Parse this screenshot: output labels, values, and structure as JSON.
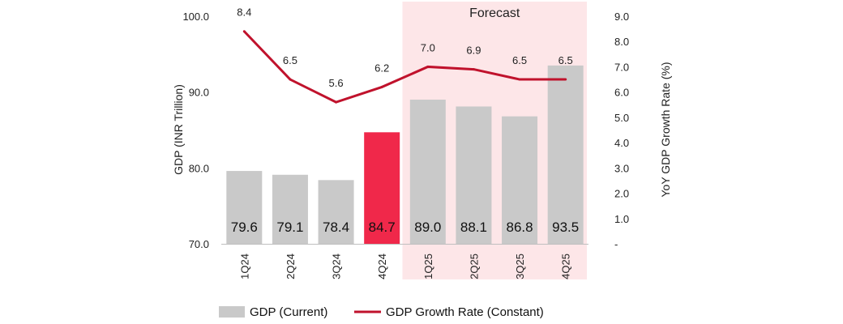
{
  "chart_data": {
    "type": "bar",
    "categories": [
      "1Q24",
      "2Q24",
      "3Q24",
      "4Q24",
      "1Q25",
      "2Q25",
      "3Q25",
      "4Q25"
    ],
    "series": [
      {
        "name": "GDP (Current)",
        "kind": "bar",
        "axis": "left",
        "values": [
          79.6,
          79.1,
          78.4,
          84.7,
          89.0,
          88.1,
          86.8,
          93.5
        ],
        "labels": [
          "79.6",
          "79.1",
          "78.4",
          "84.7",
          "89.0",
          "88.1",
          "86.8",
          "93.5"
        ],
        "color": "#c9c9c9",
        "highlight_index": 3,
        "highlight_color": "#f0284a"
      },
      {
        "name": "GDP Growth Rate (Constant)",
        "kind": "line",
        "axis": "right",
        "values": [
          8.4,
          6.5,
          5.6,
          6.2,
          7.0,
          6.9,
          6.5,
          6.5
        ],
        "labels": [
          "8.4",
          "6.5",
          "5.6",
          "6.2",
          "7.0",
          "6.9",
          "6.5",
          "6.5"
        ],
        "color": "#c0122c"
      }
    ],
    "ylabel": "GDP (INR Trillion)",
    "y2label": "YoY GDP Growth Rate (%)",
    "ylim": [
      70,
      100
    ],
    "y2lim": [
      0,
      9
    ],
    "yticks": [
      "70.0",
      "80.0",
      "90.0",
      "100.0"
    ],
    "y2ticks": [
      "-",
      "1.0",
      "2.0",
      "3.0",
      "4.0",
      "5.0",
      "6.0",
      "7.0",
      "8.0",
      "9.0"
    ],
    "forecast": {
      "label": "Forecast",
      "start_index": 4,
      "end_index": 7,
      "color": "#fde6e8"
    },
    "legend": {
      "placement": "bottom",
      "items": [
        "GDP (Current)",
        "GDP Growth Rate (Constant)"
      ]
    }
  }
}
